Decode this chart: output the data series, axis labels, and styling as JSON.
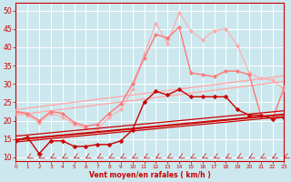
{
  "bg_color": "#cce8ee",
  "grid_color": "#ffffff",
  "xlabel": "Vent moyen/en rafales ( km/h )",
  "xlabel_color": "#cc0000",
  "tick_color": "#cc0000",
  "axis_color": "#cc0000",
  "xlim": [
    0,
    23
  ],
  "ylim": [
    9,
    52
  ],
  "yticks": [
    10,
    15,
    20,
    25,
    30,
    35,
    40,
    45,
    50
  ],
  "xticks": [
    0,
    1,
    2,
    3,
    4,
    5,
    6,
    7,
    8,
    9,
    10,
    11,
    12,
    13,
    14,
    15,
    16,
    17,
    18,
    19,
    20,
    21,
    22,
    23
  ],
  "lines": [
    {
      "comment": "light pink upper line - nearly straight, starts ~23, ends ~33",
      "x": [
        0,
        1,
        2,
        3,
        4,
        5,
        6,
        7,
        8,
        9,
        10,
        11,
        12,
        13,
        14,
        15,
        16,
        17,
        18,
        19,
        20,
        21,
        22,
        23
      ],
      "y": [
        23.0,
        23.4,
        23.8,
        24.2,
        24.6,
        25.0,
        25.4,
        25.8,
        26.2,
        26.6,
        27.0,
        27.4,
        27.8,
        28.2,
        28.6,
        29.0,
        29.4,
        29.8,
        30.2,
        30.6,
        31.0,
        31.4,
        31.8,
        32.2
      ],
      "color": "#ffaaaa",
      "lw": 1.0,
      "marker": null,
      "ms": 0,
      "ls": "-"
    },
    {
      "comment": "light pink lower straight line - starts ~22, ends ~30",
      "x": [
        0,
        1,
        2,
        3,
        4,
        5,
        6,
        7,
        8,
        9,
        10,
        11,
        12,
        13,
        14,
        15,
        16,
        17,
        18,
        19,
        20,
        21,
        22,
        23
      ],
      "y": [
        21.5,
        21.9,
        22.3,
        22.7,
        23.1,
        23.5,
        23.9,
        24.3,
        24.7,
        25.1,
        25.5,
        25.9,
        26.3,
        26.7,
        27.1,
        27.5,
        27.9,
        28.3,
        28.7,
        29.1,
        29.5,
        29.9,
        30.3,
        30.7
      ],
      "color": "#ffaaaa",
      "lw": 1.0,
      "marker": null,
      "ms": 0,
      "ls": "-"
    },
    {
      "comment": "light pink wavy line with markers - the actual data",
      "x": [
        0,
        1,
        2,
        3,
        4,
        5,
        6,
        7,
        8,
        9,
        10,
        11,
        12,
        13,
        14,
        15,
        16,
        17,
        18,
        19,
        20,
        21,
        22,
        23
      ],
      "y": [
        22.5,
        21.5,
        19.5,
        22.0,
        21.0,
        19.0,
        18.0,
        17.5,
        21.0,
        23.0,
        28.5,
        38.0,
        46.5,
        41.0,
        49.5,
        44.5,
        42.0,
        44.5,
        45.0,
        40.5,
        33.0,
        31.5,
        31.0,
        28.5
      ],
      "color": "#ffaaaa",
      "lw": 0.8,
      "marker": "D",
      "ms": 2.2,
      "ls": "-"
    },
    {
      "comment": "medium pink line with markers - another dataset",
      "x": [
        0,
        1,
        2,
        3,
        4,
        5,
        6,
        7,
        8,
        9,
        10,
        11,
        12,
        13,
        14,
        15,
        16,
        17,
        18,
        19,
        20,
        21,
        22,
        23
      ],
      "y": [
        22.5,
        22.0,
        20.0,
        22.5,
        22.0,
        19.5,
        18.5,
        19.0,
        22.0,
        24.5,
        30.0,
        37.0,
        43.5,
        42.5,
        45.5,
        33.0,
        32.5,
        32.0,
        33.5,
        33.5,
        32.5,
        21.5,
        20.5,
        29.0
      ],
      "color": "#ff7777",
      "lw": 1.0,
      "marker": "D",
      "ms": 2.2,
      "ls": "-"
    },
    {
      "comment": "dark red upper confidence bound - straight, starts ~15.5, ends ~22",
      "x": [
        0,
        1,
        2,
        3,
        4,
        5,
        6,
        7,
        8,
        9,
        10,
        11,
        12,
        13,
        14,
        15,
        16,
        17,
        18,
        19,
        20,
        21,
        22,
        23
      ],
      "y": [
        15.8,
        16.1,
        16.4,
        16.7,
        17.0,
        17.3,
        17.6,
        17.9,
        18.2,
        18.5,
        18.8,
        19.1,
        19.4,
        19.7,
        20.0,
        20.3,
        20.6,
        20.9,
        21.2,
        21.5,
        21.8,
        22.1,
        22.4,
        22.7
      ],
      "color": "#cc0000",
      "lw": 0.9,
      "marker": null,
      "ms": 0,
      "ls": "-"
    },
    {
      "comment": "dark red lower confidence bound - straight, starts ~14, ends ~20",
      "x": [
        0,
        1,
        2,
        3,
        4,
        5,
        6,
        7,
        8,
        9,
        10,
        11,
        12,
        13,
        14,
        15,
        16,
        17,
        18,
        19,
        20,
        21,
        22,
        23
      ],
      "y": [
        14.2,
        14.5,
        14.8,
        15.1,
        15.4,
        15.7,
        16.0,
        16.3,
        16.6,
        16.9,
        17.2,
        17.5,
        17.8,
        18.1,
        18.4,
        18.7,
        19.0,
        19.3,
        19.6,
        19.9,
        20.2,
        20.5,
        20.8,
        21.1
      ],
      "color": "#cc0000",
      "lw": 0.9,
      "marker": null,
      "ms": 0,
      "ls": "-"
    },
    {
      "comment": "dark red main regression line - straight, starts ~14.5, ends ~21",
      "x": [
        0,
        1,
        2,
        3,
        4,
        5,
        6,
        7,
        8,
        9,
        10,
        11,
        12,
        13,
        14,
        15,
        16,
        17,
        18,
        19,
        20,
        21,
        22,
        23
      ],
      "y": [
        14.8,
        15.1,
        15.4,
        15.7,
        16.0,
        16.3,
        16.6,
        16.9,
        17.2,
        17.5,
        17.8,
        18.1,
        18.4,
        18.7,
        19.0,
        19.3,
        19.6,
        19.9,
        20.2,
        20.5,
        20.8,
        21.1,
        21.4,
        21.7
      ],
      "color": "#cc0000",
      "lw": 1.5,
      "marker": null,
      "ms": 0,
      "ls": "-"
    },
    {
      "comment": "dark red actual data line with markers - wavy",
      "x": [
        0,
        1,
        2,
        3,
        4,
        5,
        6,
        7,
        8,
        9,
        10,
        11,
        12,
        13,
        14,
        15,
        16,
        17,
        18,
        19,
        20,
        21,
        22,
        23
      ],
      "y": [
        14.5,
        15.5,
        11.0,
        14.5,
        14.5,
        13.0,
        13.0,
        13.5,
        13.5,
        14.5,
        17.5,
        25.0,
        28.0,
        27.0,
        28.5,
        26.5,
        26.5,
        26.5,
        26.5,
        23.0,
        21.5,
        21.5,
        20.5,
        21.0
      ],
      "color": "#cc0000",
      "lw": 1.0,
      "marker": "D",
      "ms": 2.5,
      "ls": "-"
    }
  ],
  "wind_arrows": {
    "x": [
      0,
      1,
      2,
      3,
      4,
      5,
      6,
      7,
      8,
      9,
      10,
      11,
      12,
      13,
      14,
      15,
      16,
      17,
      18,
      19,
      20,
      21,
      22,
      23
    ],
    "y_base": 9.8,
    "color": "#cc0000",
    "angles": [
      225,
      225,
      225,
      225,
      225,
      225,
      225,
      225,
      225,
      225,
      225,
      225,
      225,
      225,
      225,
      225,
      225,
      225,
      225,
      225,
      225,
      225,
      225,
      225
    ]
  }
}
